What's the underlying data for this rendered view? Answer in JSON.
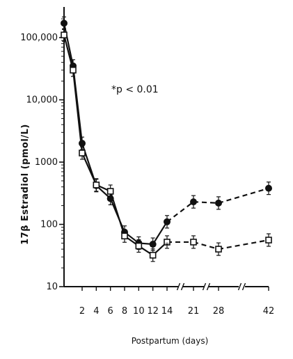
{
  "chart_data": {
    "type": "line",
    "title": "",
    "xlabel": "Postpartum (days)",
    "ylabel": "17β Estradiol (pmol/L)",
    "y_scale": "log",
    "ylim": [
      10,
      200000
    ],
    "y_ticks": [
      10,
      100,
      1000,
      10000,
      100000
    ],
    "y_tick_labels": [
      "10",
      "100",
      "1000",
      "10,000",
      "100,000"
    ],
    "x_ticks": [
      2,
      4,
      6,
      8,
      10,
      12,
      14,
      21,
      28,
      42
    ],
    "x_tick_labels": [
      "2",
      "4",
      "6",
      "8",
      "10",
      "12",
      "14",
      "21",
      "28",
      "42"
    ],
    "axis_breaks": [
      "14-21",
      "21-28",
      "28-42"
    ],
    "annotation": "*p < 0.01",
    "series": [
      {
        "marker": "filled-circle",
        "x": [
          0,
          1,
          2,
          4,
          6,
          8,
          10,
          12,
          14,
          21,
          28,
          42
        ],
        "y": [
          170000,
          35000,
          2000,
          420,
          260,
          75,
          50,
          48,
          110,
          230,
          220,
          380
        ],
        "dashed_after_x": 14
      },
      {
        "marker": "open-square",
        "x": [
          0,
          1,
          2,
          4,
          6,
          8,
          10,
          12,
          14,
          21,
          28,
          42
        ],
        "y": [
          110000,
          30000,
          1400,
          430,
          340,
          65,
          45,
          32,
          52,
          52,
          40,
          56
        ],
        "dashed_after_x": 14
      }
    ],
    "grid": false,
    "legend": "none"
  }
}
